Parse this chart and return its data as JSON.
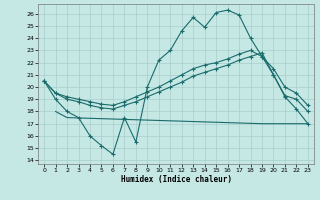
{
  "xlabel": "Humidex (Indice chaleur)",
  "xlim": [
    -0.5,
    23.5
  ],
  "ylim": [
    13.7,
    26.8
  ],
  "yticks": [
    14,
    15,
    16,
    17,
    18,
    19,
    20,
    21,
    22,
    23,
    24,
    25,
    26
  ],
  "xticks": [
    0,
    1,
    2,
    3,
    4,
    5,
    6,
    7,
    8,
    9,
    10,
    11,
    12,
    13,
    14,
    15,
    16,
    17,
    18,
    19,
    20,
    21,
    22,
    23
  ],
  "bg_color": "#c5e8e5",
  "grid_color": "#a8ceca",
  "line_color": "#1a6b6b",
  "line1_x": [
    0,
    1,
    2,
    3,
    4,
    5,
    6,
    7,
    8,
    9,
    10,
    11,
    12,
    13,
    14,
    15,
    16,
    17,
    18,
    19,
    20,
    21,
    22,
    23
  ],
  "line1_y": [
    20.5,
    19.0,
    18.0,
    17.5,
    16.0,
    15.2,
    14.5,
    17.5,
    15.5,
    20.0,
    22.2,
    23.0,
    24.6,
    25.7,
    24.9,
    26.1,
    26.3,
    25.9,
    24.0,
    22.5,
    21.0,
    19.2,
    18.2,
    17.0
  ],
  "line2_x": [
    0,
    1,
    2,
    3,
    4,
    5,
    6,
    7,
    8,
    9,
    10,
    11,
    12,
    13,
    14,
    15,
    16,
    17,
    18,
    19,
    20,
    21,
    22,
    23
  ],
  "line2_y": [
    20.5,
    19.5,
    19.0,
    18.8,
    18.5,
    18.3,
    18.2,
    18.5,
    18.8,
    19.2,
    19.6,
    20.0,
    20.4,
    20.9,
    21.2,
    21.5,
    21.8,
    22.2,
    22.5,
    22.8,
    21.0,
    19.3,
    19.0,
    18.0
  ],
  "line3_x": [
    1,
    2,
    19,
    23
  ],
  "line3_y": [
    18.0,
    17.5,
    17.0,
    17.0
  ],
  "line4_x": [
    0,
    1,
    2,
    3,
    4,
    5,
    6,
    7,
    8,
    9,
    10,
    11,
    12,
    13,
    14,
    15,
    16,
    17,
    18,
    19,
    20,
    21,
    22,
    23
  ],
  "line4_y": [
    20.5,
    19.5,
    19.2,
    19.0,
    18.8,
    18.6,
    18.5,
    18.8,
    19.2,
    19.6,
    20.0,
    20.5,
    21.0,
    21.5,
    21.8,
    22.0,
    22.3,
    22.7,
    23.0,
    22.5,
    21.5,
    20.0,
    19.5,
    18.5
  ]
}
